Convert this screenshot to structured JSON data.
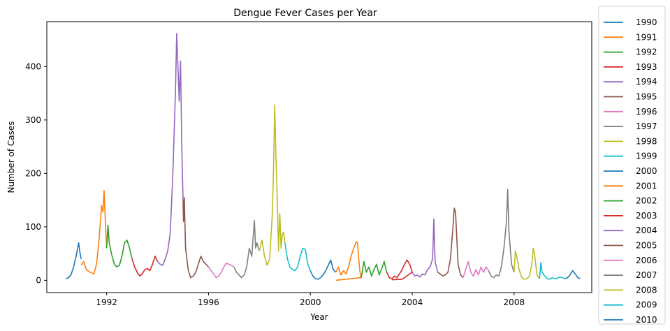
{
  "chart_data": {
    "type": "line",
    "title": "Dengue Fever Cases per Year",
    "xlabel": "Year",
    "ylabel": "Number of Cases",
    "xlim": [
      1989.65,
      2011.05
    ],
    "ylim": [
      -23,
      484
    ],
    "xticks": [
      1992,
      1996,
      2000,
      2004,
      2008
    ],
    "yticks": [
      0,
      100,
      200,
      300,
      400
    ],
    "grid": false,
    "legend": {
      "placement": "outside-right"
    },
    "series": [
      {
        "name": "1990",
        "color": "#1f77b4",
        "points": [
          [
            1990.4,
            3
          ],
          [
            1990.5,
            5
          ],
          [
            1990.6,
            10
          ],
          [
            1990.7,
            25
          ],
          [
            1990.8,
            45
          ],
          [
            1990.9,
            70
          ],
          [
            1990.95,
            52
          ],
          [
            1991.0,
            40
          ]
        ]
      },
      {
        "name": "1991",
        "color": "#ff7f0e",
        "points": [
          [
            1991.0,
            28
          ],
          [
            1991.1,
            35
          ],
          [
            1991.2,
            20
          ],
          [
            1991.35,
            15
          ],
          [
            1991.5,
            12
          ],
          [
            1991.6,
            30
          ],
          [
            1991.7,
            75
          ],
          [
            1991.8,
            140
          ],
          [
            1991.85,
            128
          ],
          [
            1991.9,
            168
          ],
          [
            1991.95,
            110
          ],
          [
            1992.0,
            60
          ]
        ]
      },
      {
        "name": "1992",
        "color": "#2ca02c",
        "points": [
          [
            1992.0,
            60
          ],
          [
            1992.05,
            103
          ],
          [
            1992.1,
            70
          ],
          [
            1992.2,
            48
          ],
          [
            1992.3,
            30
          ],
          [
            1992.4,
            25
          ],
          [
            1992.5,
            28
          ],
          [
            1992.6,
            45
          ],
          [
            1992.7,
            70
          ],
          [
            1992.8,
            75
          ],
          [
            1992.9,
            60
          ],
          [
            1993.0,
            40
          ]
        ]
      },
      {
        "name": "1993",
        "color": "#d62728",
        "points": [
          [
            1993.0,
            40
          ],
          [
            1993.1,
            25
          ],
          [
            1993.2,
            15
          ],
          [
            1993.3,
            8
          ],
          [
            1993.4,
            12
          ],
          [
            1993.5,
            20
          ],
          [
            1993.6,
            22
          ],
          [
            1993.7,
            18
          ],
          [
            1993.8,
            30
          ],
          [
            1993.9,
            45
          ],
          [
            1994.0,
            35
          ]
        ]
      },
      {
        "name": "1994",
        "color": "#9467bd",
        "points": [
          [
            1994.0,
            35
          ],
          [
            1994.1,
            30
          ],
          [
            1994.2,
            28
          ],
          [
            1994.3,
            40
          ],
          [
            1994.4,
            55
          ],
          [
            1994.5,
            90
          ],
          [
            1994.6,
            200
          ],
          [
            1994.7,
            350
          ],
          [
            1994.75,
            462
          ],
          [
            1994.8,
            400
          ],
          [
            1994.85,
            335
          ],
          [
            1994.9,
            410
          ],
          [
            1994.95,
            250
          ],
          [
            1995.0,
            150
          ]
        ]
      },
      {
        "name": "1995",
        "color": "#8c564b",
        "points": [
          [
            1995.0,
            150
          ],
          [
            1995.02,
            110
          ],
          [
            1995.05,
            155
          ],
          [
            1995.1,
            60
          ],
          [
            1995.2,
            20
          ],
          [
            1995.3,
            5
          ],
          [
            1995.4,
            8
          ],
          [
            1995.5,
            15
          ],
          [
            1995.6,
            30
          ],
          [
            1995.7,
            45
          ],
          [
            1995.8,
            35
          ],
          [
            1995.9,
            30
          ],
          [
            1996.0,
            25
          ]
        ]
      },
      {
        "name": "1996",
        "color": "#e377c2",
        "points": [
          [
            1996.0,
            25
          ],
          [
            1996.1,
            18
          ],
          [
            1996.2,
            12
          ],
          [
            1996.3,
            5
          ],
          [
            1996.4,
            8
          ],
          [
            1996.5,
            15
          ],
          [
            1996.6,
            25
          ],
          [
            1996.7,
            32
          ],
          [
            1996.8,
            30
          ],
          [
            1996.9,
            28
          ],
          [
            1997.0,
            25
          ]
        ]
      },
      {
        "name": "1997",
        "color": "#7f7f7f",
        "points": [
          [
            1997.0,
            25
          ],
          [
            1997.1,
            15
          ],
          [
            1997.2,
            10
          ],
          [
            1997.3,
            5
          ],
          [
            1997.4,
            10
          ],
          [
            1997.5,
            25
          ],
          [
            1997.6,
            60
          ],
          [
            1997.7,
            45
          ],
          [
            1997.8,
            112
          ],
          [
            1997.85,
            60
          ],
          [
            1997.9,
            70
          ],
          [
            1998.0,
            55
          ]
        ]
      },
      {
        "name": "1998",
        "color": "#bcbd22",
        "points": [
          [
            1998.0,
            55
          ],
          [
            1998.1,
            75
          ],
          [
            1998.2,
            45
          ],
          [
            1998.3,
            28
          ],
          [
            1998.4,
            40
          ],
          [
            1998.5,
            120
          ],
          [
            1998.55,
            200
          ],
          [
            1998.6,
            328
          ],
          [
            1998.65,
            230
          ],
          [
            1998.7,
            150
          ],
          [
            1998.75,
            55
          ],
          [
            1998.8,
            125
          ],
          [
            1998.85,
            60
          ],
          [
            1998.9,
            85
          ],
          [
            1998.95,
            90
          ],
          [
            1999.0,
            70
          ]
        ]
      },
      {
        "name": "1999",
        "color": "#17becf",
        "points": [
          [
            1999.0,
            70
          ],
          [
            1999.1,
            40
          ],
          [
            1999.2,
            25
          ],
          [
            1999.3,
            20
          ],
          [
            1999.4,
            18
          ],
          [
            1999.5,
            25
          ],
          [
            1999.6,
            45
          ],
          [
            1999.7,
            60
          ],
          [
            1999.8,
            58
          ],
          [
            1999.9,
            30
          ],
          [
            2000.0,
            18
          ]
        ]
      },
      {
        "name": "2000",
        "color": "#1f77b4",
        "points": [
          [
            2000.0,
            18
          ],
          [
            2000.1,
            8
          ],
          [
            2000.2,
            3
          ],
          [
            2000.3,
            2
          ],
          [
            2000.4,
            5
          ],
          [
            2000.5,
            10
          ],
          [
            2000.6,
            18
          ],
          [
            2000.7,
            28
          ],
          [
            2000.8,
            38
          ],
          [
            2000.9,
            20
          ],
          [
            2001.0,
            15
          ]
        ]
      },
      {
        "name": "2001",
        "color": "#ff7f0e",
        "points": [
          [
            2001.0,
            15
          ],
          [
            2001.1,
            25
          ],
          [
            2001.2,
            10
          ],
          [
            2001.3,
            18
          ],
          [
            2001.4,
            12
          ],
          [
            2001.5,
            25
          ],
          [
            2001.6,
            45
          ],
          [
            2001.7,
            60
          ],
          [
            2001.8,
            72
          ],
          [
            2001.85,
            70
          ],
          [
            2001.9,
            40
          ],
          [
            2001.95,
            15
          ],
          [
            2002.0,
            5
          ],
          [
            2001.2,
            1
          ],
          [
            2001.0,
            0
          ]
        ]
      },
      {
        "name": "2002",
        "color": "#2ca02c",
        "points": [
          [
            2002.0,
            5
          ],
          [
            2002.1,
            35
          ],
          [
            2002.2,
            15
          ],
          [
            2002.3,
            25
          ],
          [
            2002.4,
            8
          ],
          [
            2002.5,
            20
          ],
          [
            2002.6,
            30
          ],
          [
            2002.7,
            10
          ],
          [
            2002.8,
            22
          ],
          [
            2002.9,
            35
          ],
          [
            2003.0,
            15
          ]
        ]
      },
      {
        "name": "2003",
        "color": "#d62728",
        "points": [
          [
            2003.0,
            15
          ],
          [
            2003.1,
            5
          ],
          [
            2003.2,
            3
          ],
          [
            2003.3,
            8
          ],
          [
            2003.4,
            5
          ],
          [
            2003.5,
            12
          ],
          [
            2003.6,
            20
          ],
          [
            2003.7,
            30
          ],
          [
            2003.8,
            38
          ],
          [
            2003.9,
            30
          ],
          [
            2004.0,
            15
          ],
          [
            2003.6,
            2
          ],
          [
            2003.2,
            1
          ]
        ]
      },
      {
        "name": "2004",
        "color": "#9467bd",
        "points": [
          [
            2004.0,
            15
          ],
          [
            2004.1,
            8
          ],
          [
            2004.2,
            10
          ],
          [
            2004.3,
            6
          ],
          [
            2004.4,
            12
          ],
          [
            2004.5,
            10
          ],
          [
            2004.6,
            20
          ],
          [
            2004.7,
            25
          ],
          [
            2004.8,
            40
          ],
          [
            2004.85,
            115
          ],
          [
            2004.9,
            35
          ],
          [
            2005.0,
            15
          ]
        ]
      },
      {
        "name": "2005",
        "color": "#8c564b",
        "points": [
          [
            2005.0,
            15
          ],
          [
            2005.1,
            12
          ],
          [
            2005.2,
            8
          ],
          [
            2005.3,
            10
          ],
          [
            2005.4,
            15
          ],
          [
            2005.5,
            40
          ],
          [
            2005.6,
            100
          ],
          [
            2005.65,
            135
          ],
          [
            2005.7,
            128
          ],
          [
            2005.75,
            80
          ],
          [
            2005.8,
            30
          ],
          [
            2005.9,
            10
          ],
          [
            2006.0,
            5
          ]
        ]
      },
      {
        "name": "2006",
        "color": "#e377c2",
        "points": [
          [
            2006.0,
            5
          ],
          [
            2006.1,
            20
          ],
          [
            2006.2,
            35
          ],
          [
            2006.3,
            15
          ],
          [
            2006.4,
            8
          ],
          [
            2006.5,
            20
          ],
          [
            2006.6,
            10
          ],
          [
            2006.7,
            25
          ],
          [
            2006.8,
            15
          ],
          [
            2006.9,
            25
          ],
          [
            2007.0,
            18
          ]
        ]
      },
      {
        "name": "2007",
        "color": "#7f7f7f",
        "points": [
          [
            2007.0,
            18
          ],
          [
            2007.1,
            8
          ],
          [
            2007.2,
            5
          ],
          [
            2007.3,
            10
          ],
          [
            2007.4,
            8
          ],
          [
            2007.5,
            25
          ],
          [
            2007.6,
            60
          ],
          [
            2007.7,
            110
          ],
          [
            2007.75,
            170
          ],
          [
            2007.8,
            90
          ],
          [
            2007.9,
            30
          ],
          [
            2008.0,
            15
          ]
        ]
      },
      {
        "name": "2008",
        "color": "#bcbd22",
        "points": [
          [
            2008.0,
            15
          ],
          [
            2008.05,
            55
          ],
          [
            2008.1,
            45
          ],
          [
            2008.2,
            20
          ],
          [
            2008.3,
            5
          ],
          [
            2008.4,
            2
          ],
          [
            2008.5,
            3
          ],
          [
            2008.6,
            8
          ],
          [
            2008.7,
            30
          ],
          [
            2008.75,
            60
          ],
          [
            2008.8,
            50
          ],
          [
            2008.9,
            10
          ],
          [
            2009.0,
            3
          ]
        ]
      },
      {
        "name": "2009",
        "color": "#17becf",
        "points": [
          [
            2009.0,
            3
          ],
          [
            2009.05,
            33
          ],
          [
            2009.1,
            15
          ],
          [
            2009.2,
            8
          ],
          [
            2009.3,
            3
          ],
          [
            2009.4,
            2
          ],
          [
            2009.5,
            5
          ],
          [
            2009.6,
            3
          ],
          [
            2009.7,
            4
          ],
          [
            2009.8,
            6
          ],
          [
            2009.9,
            5
          ],
          [
            2010.0,
            3
          ]
        ]
      },
      {
        "name": "2010",
        "color": "#1f77b4",
        "points": [
          [
            2010.0,
            3
          ],
          [
            2010.1,
            5
          ],
          [
            2010.2,
            10
          ],
          [
            2010.3,
            18
          ],
          [
            2010.4,
            12
          ],
          [
            2010.5,
            5
          ],
          [
            2010.6,
            3
          ]
        ]
      }
    ]
  }
}
